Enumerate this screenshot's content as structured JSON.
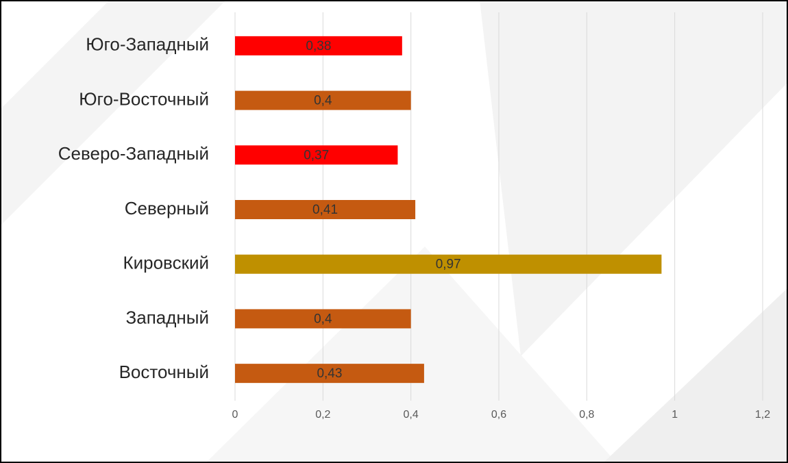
{
  "chart_data": {
    "type": "barh",
    "categories": [
      "Юго-Западный",
      "Юго-Восточный",
      "Северо-Западный",
      "Северный",
      "Кировский",
      "Западный",
      "Восточный"
    ],
    "values": [
      0.38,
      0.4,
      0.37,
      0.41,
      0.97,
      0.4,
      0.43
    ],
    "value_labels": [
      "0,38",
      "0,4",
      "0,37",
      "0,41",
      "0,97",
      "0,4",
      "0,43"
    ],
    "colors": [
      "#ff0000",
      "#c55a11",
      "#ff0000",
      "#c55a11",
      "#bf9000",
      "#c55a11",
      "#c55a11"
    ],
    "xlim": [
      0,
      1.2
    ],
    "xticks": [
      0,
      {
        "value": 0.2,
        "label": "0,2"
      },
      {
        "value": 0.4,
        "label": "0,4"
      },
      {
        "value": 0.6,
        "label": "0,6"
      },
      {
        "value": 0.8,
        "label": "0,8"
      },
      1,
      {
        "value": 1.2,
        "label": "1,2"
      }
    ],
    "grid": true
  }
}
